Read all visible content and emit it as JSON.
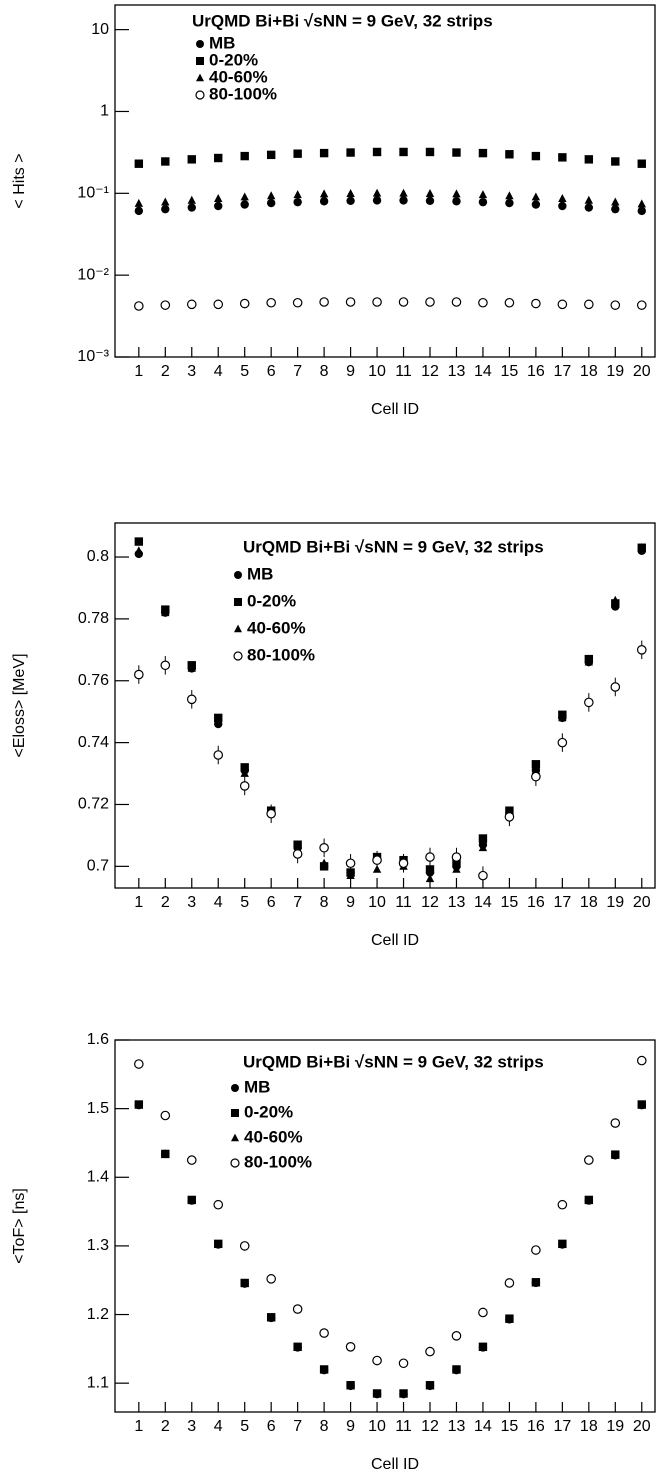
{
  "chart_data": [
    {
      "type": "scatter",
      "title": "UrQMD Bi+Bi √sNN = 9 GeV,  32 strips",
      "x_label": "Cell ID",
      "y_label": "< Hits >",
      "x": [
        1,
        2,
        3,
        4,
        5,
        6,
        7,
        8,
        9,
        10,
        11,
        12,
        13,
        14,
        15,
        16,
        17,
        18,
        19,
        20
      ],
      "xlim": [
        0.1,
        20.5
      ],
      "xticks": [
        1,
        2,
        3,
        4,
        5,
        6,
        7,
        8,
        9,
        10,
        11,
        12,
        13,
        14,
        15,
        16,
        17,
        18,
        19,
        20
      ],
      "log_y": true,
      "ylim": [
        0.001,
        20
      ],
      "yticks": [
        10,
        1,
        {
          "value": 0.1,
          "label": "10⁻¹"
        },
        {
          "value": 0.01,
          "label": "10⁻²"
        },
        {
          "value": 0.001,
          "label": "10⁻³"
        }
      ],
      "series": [
        {
          "name": "MB",
          "marker": "circle",
          "color": "#000000",
          "values": [
            0.061,
            0.064,
            0.067,
            0.07,
            0.073,
            0.076,
            0.078,
            0.08,
            0.081,
            0.082,
            0.082,
            0.081,
            0.08,
            0.078,
            0.076,
            0.073,
            0.07,
            0.067,
            0.064,
            0.061
          ]
        },
        {
          "name": "0-20%",
          "marker": "square",
          "color": "#000000",
          "values": [
            0.23,
            0.245,
            0.26,
            0.27,
            0.285,
            0.295,
            0.305,
            0.31,
            0.315,
            0.32,
            0.32,
            0.32,
            0.315,
            0.31,
            0.3,
            0.285,
            0.275,
            0.26,
            0.245,
            0.23
          ]
        },
        {
          "name": "40-60%",
          "marker": "triangle",
          "color": "#000000",
          "values": [
            0.075,
            0.078,
            0.082,
            0.086,
            0.09,
            0.093,
            0.096,
            0.098,
            0.099,
            0.1,
            0.1,
            0.099,
            0.098,
            0.096,
            0.093,
            0.09,
            0.086,
            0.082,
            0.078,
            0.074
          ]
        },
        {
          "name": "80-100%",
          "marker": "open-circle",
          "color": "#000000",
          "values": [
            0.0042,
            0.0043,
            0.0044,
            0.0044,
            0.0045,
            0.0046,
            0.0046,
            0.0047,
            0.0047,
            0.0047,
            0.0047,
            0.0047,
            0.0047,
            0.0046,
            0.0046,
            0.0045,
            0.0044,
            0.0044,
            0.0043,
            0.0043
          ]
        }
      ]
    },
    {
      "type": "scatter",
      "title": "UrQMD Bi+Bi √sNN = 9 GeV, 32 strips",
      "x_label": "Cell ID",
      "y_label": "<Eloss> [MeV]",
      "x": [
        1,
        2,
        3,
        4,
        5,
        6,
        7,
        8,
        9,
        10,
        11,
        12,
        13,
        14,
        15,
        16,
        17,
        18,
        19,
        20
      ],
      "xlim": [
        0.1,
        20.5
      ],
      "xticks": [
        1,
        2,
        3,
        4,
        5,
        6,
        7,
        8,
        9,
        10,
        11,
        12,
        13,
        14,
        15,
        16,
        17,
        18,
        19,
        20
      ],
      "ylim": [
        0.693,
        0.811
      ],
      "yticks": [
        0.7,
        0.72,
        0.74,
        0.76,
        0.78,
        0.8
      ],
      "series": [
        {
          "name": "MB",
          "marker": "circle",
          "color": "#000000",
          "values": [
            0.801,
            0.782,
            0.764,
            0.746,
            0.731,
            0.717,
            0.706,
            0.7,
            0.698,
            0.702,
            0.701,
            0.698,
            0.7,
            0.707,
            0.717,
            0.731,
            0.748,
            0.766,
            0.784,
            0.802
          ]
        },
        {
          "name": "0-20%",
          "marker": "square",
          "color": "#000000",
          "values": [
            0.805,
            0.783,
            0.765,
            0.748,
            0.732,
            0.718,
            0.707,
            0.7,
            0.698,
            0.703,
            0.702,
            0.699,
            0.701,
            0.709,
            0.718,
            0.733,
            0.749,
            0.767,
            0.785,
            0.803
          ]
        },
        {
          "name": "40-60%",
          "marker": "triangle",
          "color": "#000000",
          "values": [
            0.802,
            0.782,
            0.764,
            0.747,
            0.73,
            0.718,
            0.705,
            0.701,
            0.697,
            0.699,
            0.7,
            0.696,
            0.699,
            0.706,
            0.717,
            0.731,
            0.748,
            0.766,
            0.786,
            0.803
          ]
        },
        {
          "name": "80-100%",
          "marker": "open-circle",
          "color": "#000000",
          "values": [
            0.762,
            0.765,
            0.754,
            0.736,
            0.726,
            0.717,
            0.704,
            0.706,
            0.701,
            0.702,
            0.701,
            0.703,
            0.703,
            0.697,
            0.716,
            0.729,
            0.74,
            0.753,
            0.758,
            0.77
          ],
          "errors": [
            0.003,
            0.003,
            0.003,
            0.003,
            0.003,
            0.003,
            0.003,
            0.003,
            0.003,
            0.003,
            0.003,
            0.003,
            0.003,
            0.003,
            0.003,
            0.003,
            0.003,
            0.003,
            0.003,
            0.003
          ]
        }
      ]
    },
    {
      "type": "scatter",
      "title": "UrQMD Bi+Bi √sNN = 9 GeV, 32 strips",
      "x_label": "Cell ID",
      "y_label": "<ToF> [ns]",
      "x": [
        1,
        2,
        3,
        4,
        5,
        6,
        7,
        8,
        9,
        10,
        11,
        12,
        13,
        14,
        15,
        16,
        17,
        18,
        19,
        20
      ],
      "xlim": [
        0.1,
        20.5
      ],
      "xticks": [
        1,
        2,
        3,
        4,
        5,
        6,
        7,
        8,
        9,
        10,
        11,
        12,
        13,
        14,
        15,
        16,
        17,
        18,
        19,
        20
      ],
      "ylim": [
        1.058,
        1.6
      ],
      "yticks": [
        1.1,
        1.2,
        1.3,
        1.4,
        1.5,
        1.6
      ],
      "series": [
        {
          "name": "MB",
          "marker": "circle",
          "color": "#000000",
          "values": [
            1.505,
            1.434,
            1.366,
            1.302,
            1.245,
            1.195,
            1.152,
            1.119,
            1.096,
            1.084,
            1.084,
            1.096,
            1.119,
            1.152,
            1.193,
            1.246,
            1.302,
            1.366,
            1.432,
            1.505
          ]
        },
        {
          "name": "0-20%",
          "marker": "square",
          "color": "#000000",
          "values": [
            1.506,
            1.434,
            1.367,
            1.303,
            1.246,
            1.196,
            1.153,
            1.12,
            1.097,
            1.085,
            1.085,
            1.097,
            1.12,
            1.153,
            1.194,
            1.247,
            1.303,
            1.367,
            1.433,
            1.506
          ]
        },
        {
          "name": "40-60%",
          "marker": "triangle",
          "color": "#000000",
          "values": [
            1.505,
            1.433,
            1.366,
            1.302,
            1.245,
            1.195,
            1.152,
            1.119,
            1.096,
            1.084,
            1.084,
            1.096,
            1.119,
            1.152,
            1.193,
            1.246,
            1.302,
            1.366,
            1.432,
            1.505
          ]
        },
        {
          "name": "80-100%",
          "marker": "open-circle",
          "color": "#000000",
          "values": [
            1.565,
            1.49,
            1.425,
            1.36,
            1.3,
            1.252,
            1.208,
            1.173,
            1.153,
            1.133,
            1.129,
            1.146,
            1.169,
            1.203,
            1.246,
            1.294,
            1.36,
            1.425,
            1.479,
            1.57
          ]
        }
      ]
    }
  ]
}
